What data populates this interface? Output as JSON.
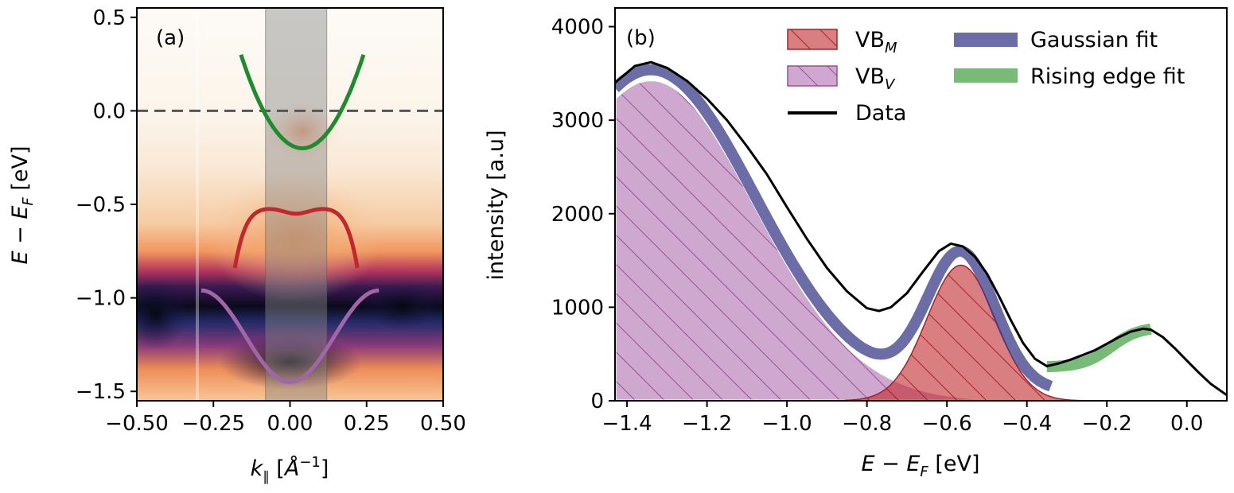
{
  "chart_data": [
    {
      "type": "heatmap",
      "panel_label": "(a)",
      "xlabel": "k∥ [Å⁻¹]",
      "ylabel": "E − E_F [eV]",
      "xlim": [
        -0.5,
        0.5
      ],
      "ylim": [
        -1.55,
        0.55
      ],
      "xticks": [
        -0.5,
        -0.25,
        0.0,
        0.25,
        0.5
      ],
      "xtick_labels": [
        "−0.50",
        "−0.25",
        "0.00",
        "0.25",
        "0.50"
      ],
      "yticks": [
        0.5,
        0.0,
        -0.5,
        -1.0,
        -1.5
      ],
      "ytick_labels": [
        "0.5",
        "0.0",
        "−0.5",
        "−1.0",
        "−1.5"
      ],
      "fermi_level": 0.0,
      "integration_window": [
        -0.08,
        0.12
      ],
      "bands": [
        {
          "name": "green",
          "color": "#1f8a2e",
          "x_range": [
            -0.16,
            0.24
          ],
          "center": 0.04,
          "min": -0.2,
          "curvature": 12.5
        },
        {
          "name": "red",
          "color": "#c0282d",
          "x_range": [
            -0.18,
            0.22
          ],
          "center": 0.02,
          "shape": "double-peak",
          "peaks": [
            -0.1,
            0.14
          ],
          "peak_value": -0.52,
          "center_value": -0.55,
          "edge_value": -0.84
        },
        {
          "name": "purple",
          "color": "#a066a8",
          "x_range": [
            -0.29,
            0.29
          ],
          "center": 0.0,
          "min": -1.45,
          "max": -0.96,
          "shape": "cosine"
        }
      ]
    },
    {
      "type": "area",
      "panel_label": "(b)",
      "xlabel": "E − E_F [eV]",
      "ylabel": "intensity [a.u]",
      "xlim": [
        -1.43,
        0.1
      ],
      "ylim": [
        0,
        4200
      ],
      "xticks": [
        -1.4,
        -1.2,
        -1.0,
        -0.8,
        -0.6,
        -0.4,
        -0.2,
        0.0
      ],
      "xtick_labels": [
        "−1.4",
        "−1.2",
        "−1.0",
        "−0.8",
        "−0.6",
        "−0.4",
        "−0.2",
        "0.0"
      ],
      "yticks": [
        0,
        1000,
        2000,
        3000,
        4000
      ],
      "ytick_labels": [
        "0",
        "1000",
        "2000",
        "3000",
        "4000"
      ],
      "series": [
        {
          "name": "VB_V",
          "kind": "gaussian",
          "amplitude": 3430,
          "center": -1.34,
          "sigma": 0.26,
          "color": "#a661a6",
          "hatch": true
        },
        {
          "name": "VB_M",
          "kind": "gaussian",
          "amplitude": 1450,
          "center": -0.565,
          "sigma": 0.085,
          "color": "#c0282d",
          "hatch": true
        },
        {
          "name": "Gaussian fit",
          "kind": "sum",
          "color": "#3b3b8a"
        },
        {
          "name": "Rising edge fit",
          "kind": "line",
          "x_range": [
            -0.35,
            -0.09
          ],
          "color": "#3e9e3e"
        },
        {
          "name": "Data",
          "kind": "line",
          "color": "#000000",
          "x": [
            -1.43,
            -1.38,
            -1.34,
            -1.3,
            -1.25,
            -1.2,
            -1.15,
            -1.1,
            -1.05,
            -1.0,
            -0.95,
            -0.9,
            -0.85,
            -0.8,
            -0.77,
            -0.74,
            -0.7,
            -0.66,
            -0.62,
            -0.59,
            -0.56,
            -0.53,
            -0.5,
            -0.47,
            -0.44,
            -0.41,
            -0.38,
            -0.35,
            -0.32,
            -0.29,
            -0.26,
            -0.23,
            -0.2,
            -0.17,
            -0.14,
            -0.11,
            -0.09,
            -0.06,
            -0.03,
            0.0,
            0.03,
            0.06,
            0.1
          ],
          "y": [
            3400,
            3580,
            3620,
            3560,
            3420,
            3230,
            3000,
            2720,
            2420,
            2070,
            1730,
            1420,
            1170,
            990,
            960,
            1000,
            1150,
            1380,
            1600,
            1680,
            1650,
            1540,
            1360,
            1120,
            860,
            620,
            450,
            370,
            400,
            440,
            490,
            540,
            610,
            680,
            740,
            770,
            760,
            680,
            560,
            430,
            300,
            180,
            60
          ]
        }
      ],
      "legend": [
        {
          "label": "VB",
          "sub": "M",
          "type": "patch",
          "color": "#c0282d"
        },
        {
          "label": "VB",
          "sub": "V",
          "type": "patch",
          "color": "#a661a6"
        },
        {
          "label": "Data",
          "type": "line",
          "color": "#000000"
        },
        {
          "label": "Gaussian fit",
          "type": "band",
          "color": "#3b3b8a"
        },
        {
          "label": "Rising edge fit",
          "type": "band",
          "color": "#3e9e3e"
        }
      ]
    }
  ]
}
